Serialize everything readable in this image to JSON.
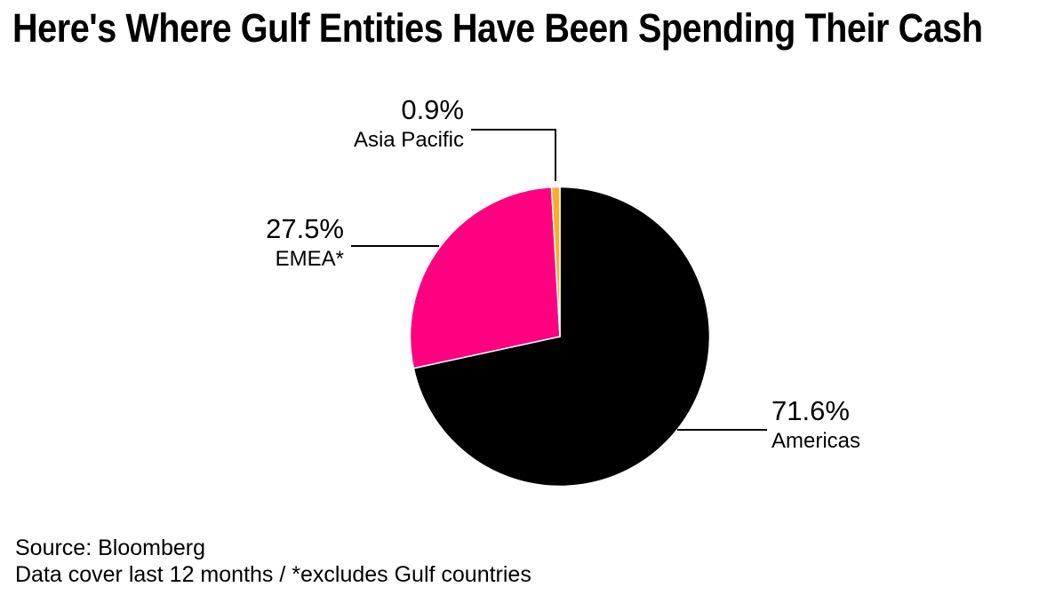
{
  "title": "Here's Where Gulf Entities Have Been Spending Their Cash",
  "chart_data": {
    "type": "pie",
    "title": "Here's Where Gulf Entities Have Been Spending Their Cash",
    "direction": "clockwise",
    "start_angle_deg": 0,
    "legend_position": "callout-labels",
    "slices": [
      {
        "label": "Americas",
        "value": 71.6,
        "display": "71.6%",
        "color": "#000000"
      },
      {
        "label": "EMEA*",
        "value": 27.5,
        "display": "27.5%",
        "color": "#FF0080"
      },
      {
        "label": "Asia Pacific",
        "value": 0.9,
        "display": "0.9%",
        "color": "#FCAD23"
      }
    ]
  },
  "footer": {
    "source": "Source: Bloomberg",
    "note": "Data cover last 12 months / *excludes Gulf countries"
  }
}
